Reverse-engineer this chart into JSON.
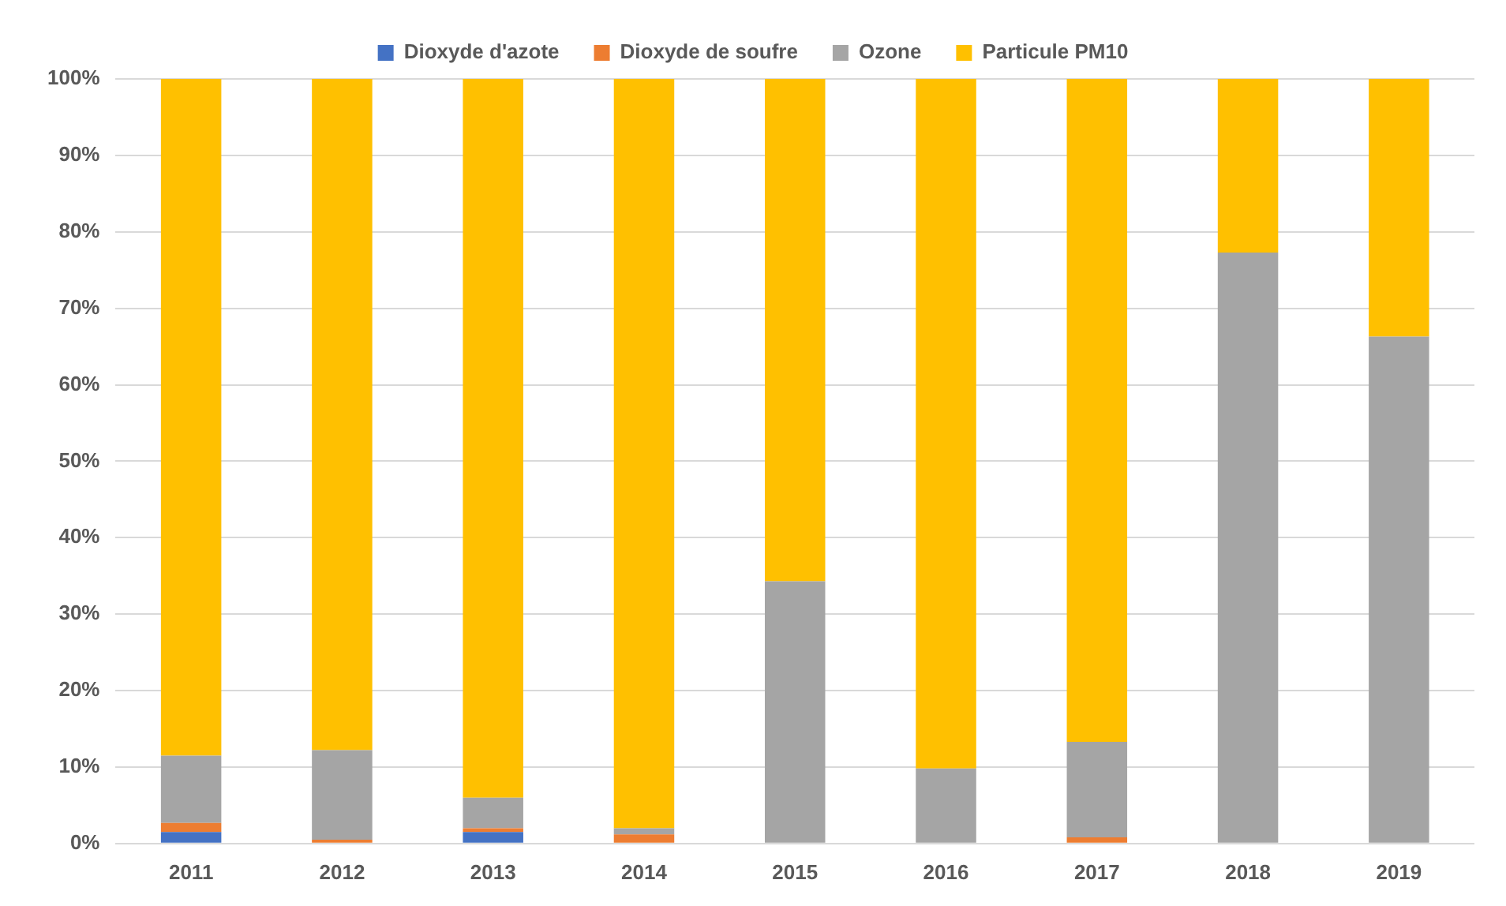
{
  "chart_data": {
    "type": "bar",
    "stacked": true,
    "categories": [
      "2011",
      "2012",
      "2013",
      "2014",
      "2015",
      "2016",
      "2017",
      "2018",
      "2019"
    ],
    "series": [
      {
        "name": "Dioxyde d'azote",
        "color": "#4472c4",
        "values": [
          1.5,
          0,
          1.5,
          0,
          0,
          0,
          0,
          0,
          0
        ]
      },
      {
        "name": "Dioxyde de soufre",
        "color": "#ed7d31",
        "values": [
          1.2,
          0.5,
          0.5,
          1.2,
          0,
          0,
          0.8,
          0,
          0
        ]
      },
      {
        "name": "Ozone",
        "color": "#a5a5a5",
        "values": [
          8.8,
          11.7,
          4,
          0.8,
          34.3,
          9.8,
          12.5,
          77.3,
          66.3
        ]
      },
      {
        "name": "Particule PM10",
        "color": "#ffc000",
        "values": [
          88.5,
          87.8,
          94,
          98,
          65.7,
          90.2,
          86.7,
          22.7,
          33.7
        ]
      }
    ],
    "ylim": [
      0,
      100
    ],
    "yticks": [
      {
        "value": 0,
        "label": "0%"
      },
      {
        "value": 10,
        "label": "10%"
      },
      {
        "value": 20,
        "label": "20%"
      },
      {
        "value": 30,
        "label": "30%"
      },
      {
        "value": 40,
        "label": "40%"
      },
      {
        "value": 50,
        "label": "50%"
      },
      {
        "value": 60,
        "label": "60%"
      },
      {
        "value": 70,
        "label": "70%"
      },
      {
        "value": 80,
        "label": "80%"
      },
      {
        "value": 90,
        "label": "90%"
      },
      {
        "value": 100,
        "label": "100%"
      }
    ],
    "grid": "y",
    "legend": "top"
  }
}
